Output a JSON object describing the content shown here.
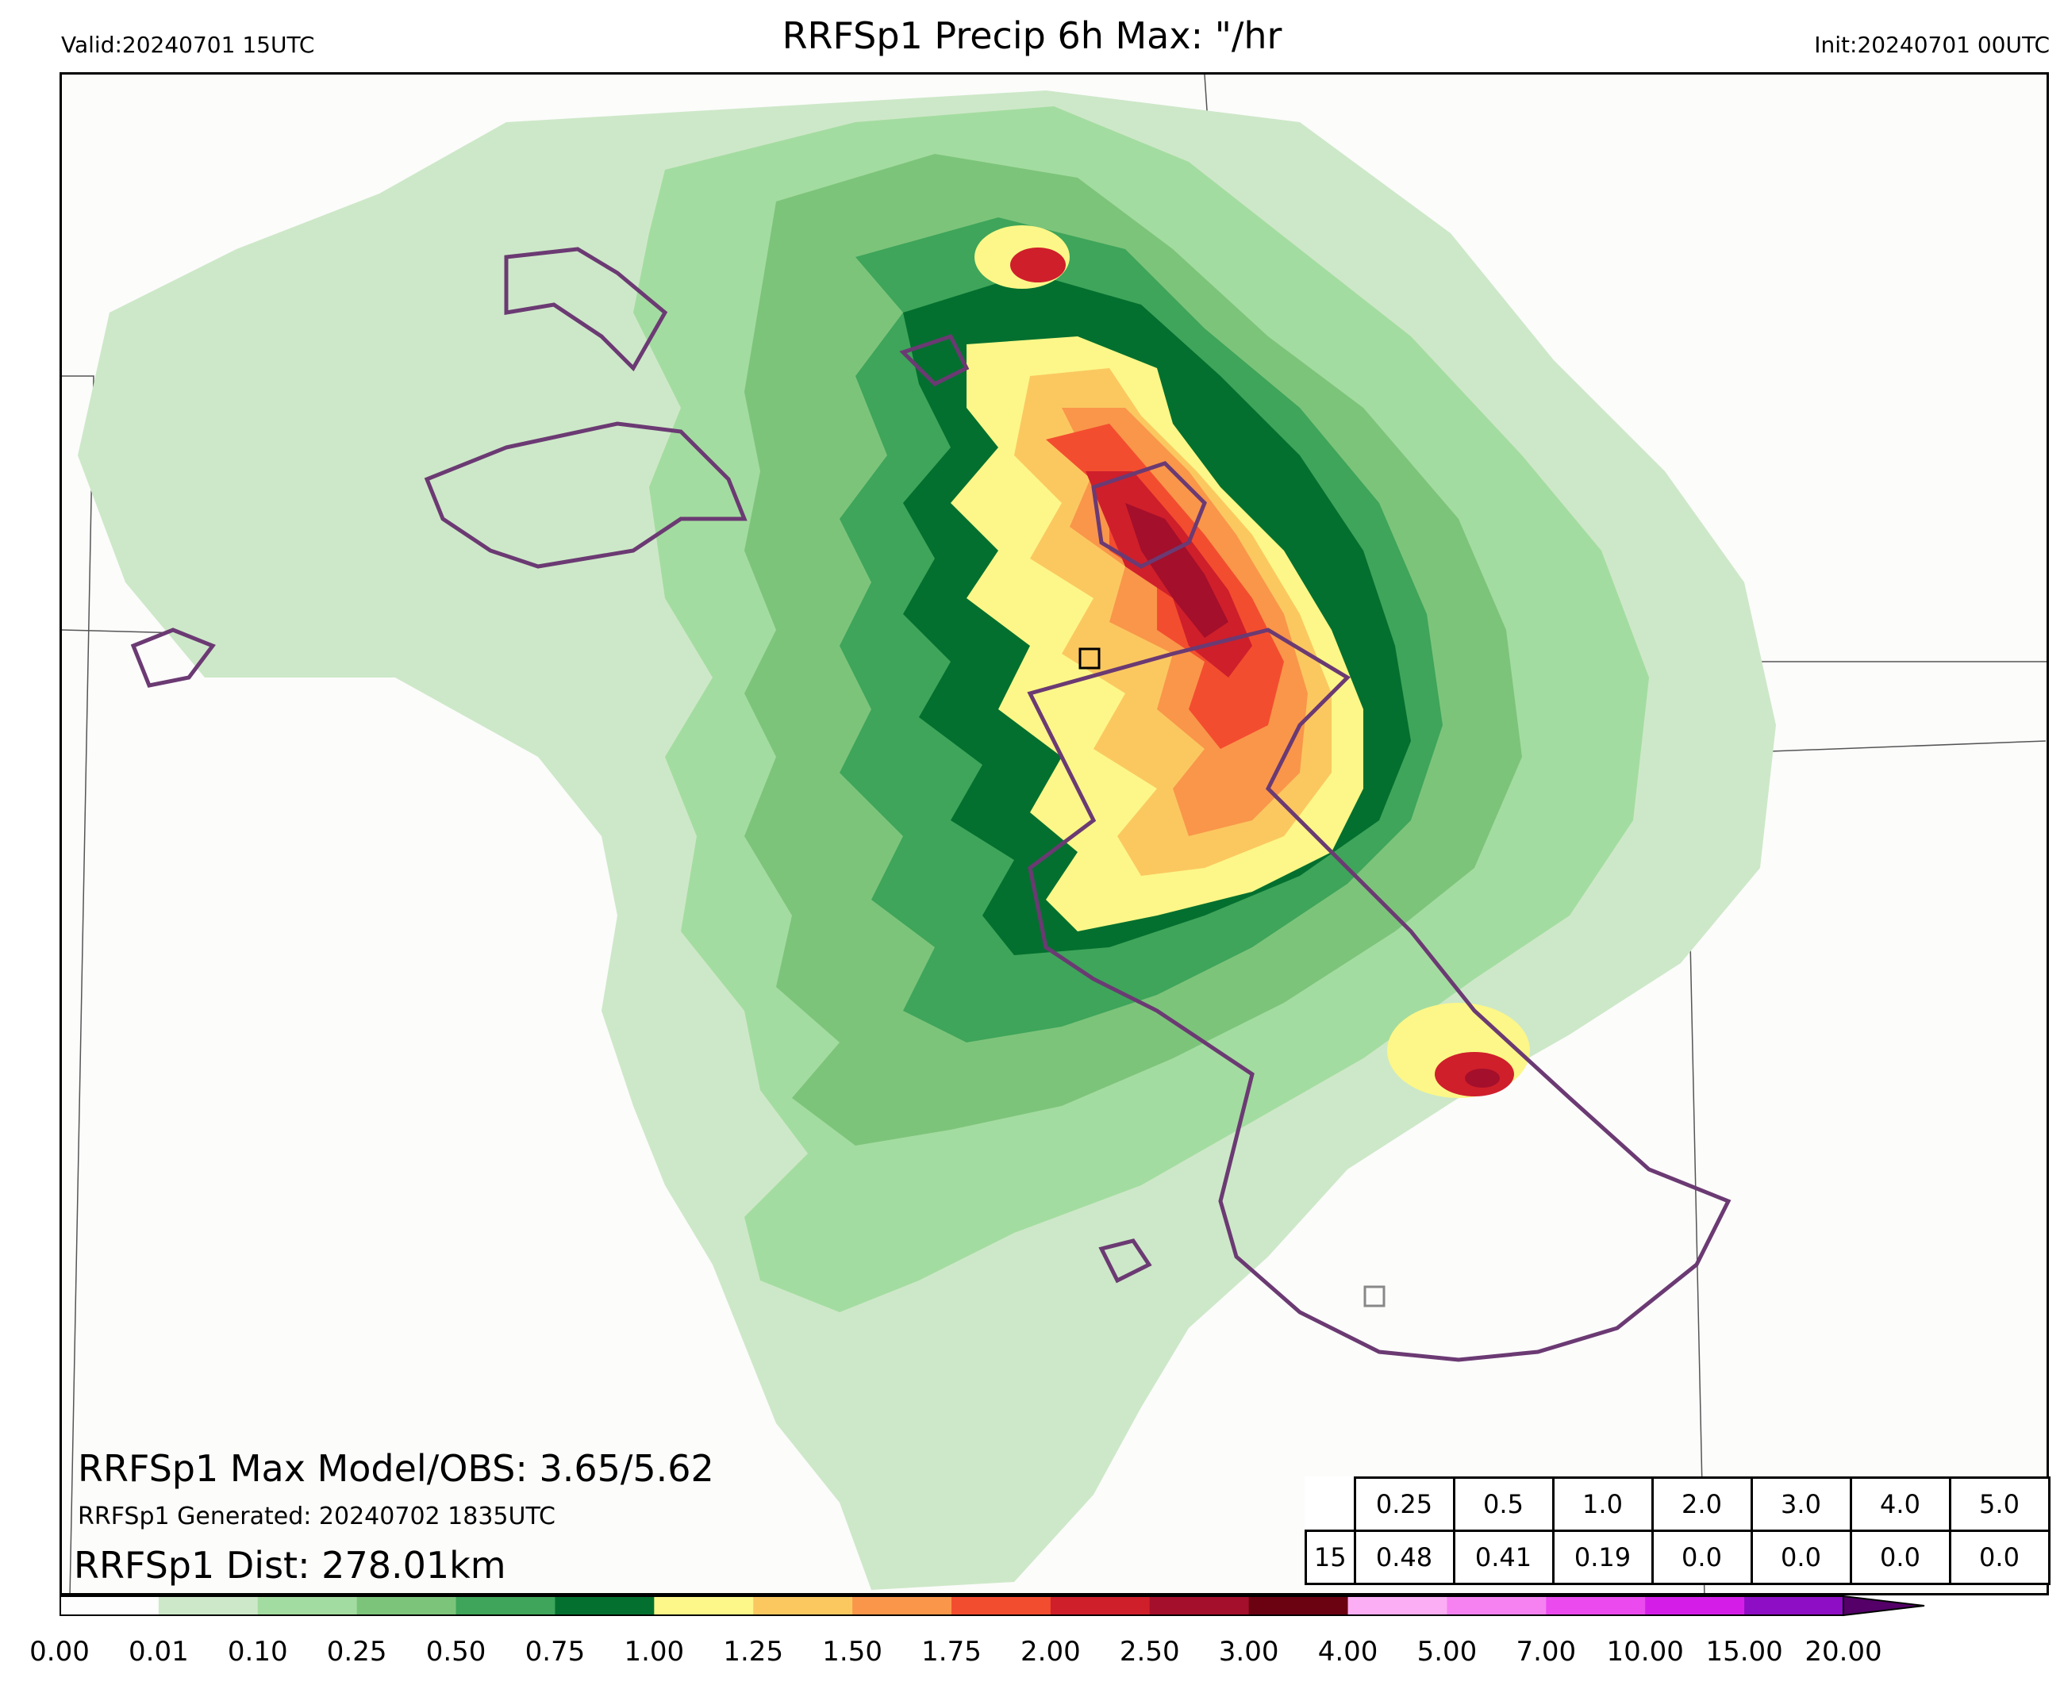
{
  "header": {
    "valid": "Valid:20240701 15UTC",
    "title": "RRFSp1 Precip 6h Max: \"/hr",
    "init": "Init:20240701 00UTC"
  },
  "stats": {
    "max": "RRFSp1 Max Model/OBS: 3.65/5.62",
    "generated": "RRFSp1 Generated: 20240702 1835UTC",
    "dist": "RRFSp1 Dist: 278.01km"
  },
  "table": {
    "thresholds": [
      "0.25",
      "0.5",
      "1.0",
      "2.0",
      "3.0",
      "4.0",
      "5.0"
    ],
    "row_label": "15",
    "values": [
      "0.48",
      "0.41",
      "0.19",
      "0.0",
      "0.0",
      "0.0",
      "0.0"
    ]
  },
  "colorbar": {
    "ticks": [
      "0.00",
      "0.01",
      "0.10",
      "0.25",
      "0.50",
      "0.75",
      "1.00",
      "1.25",
      "1.50",
      "1.75",
      "2.00",
      "2.50",
      "3.00",
      "4.00",
      "5.00",
      "7.00",
      "10.00",
      "15.00",
      "20.00"
    ],
    "colors": [
      "#fdfdfd",
      "#cde8c8",
      "#a3dca0",
      "#7dc47b",
      "#3ea55a",
      "#04702f",
      "#fcf788",
      "#fbc860",
      "#f9964a",
      "#f34d2f",
      "#cf1f2b",
      "#a40f2b",
      "#6b0212",
      "#fbaef3",
      "#f682f2",
      "#ea4aee",
      "#d41ee8",
      "#8d0ec5",
      "#540068"
    ]
  },
  "map": {
    "colors": {
      "light_green": "#cde8c8",
      "green2": "#a3dca0",
      "green3": "#7dc47b",
      "green4": "#3ea55a",
      "dark_green": "#04702f",
      "yellow": "#fcf788",
      "gold": "#fbc860",
      "orange": "#f9964a",
      "red_orange": "#f34d2f",
      "red": "#cf1f2b",
      "dark_red": "#a40f2b",
      "obs_contour": "#6b3a73"
    }
  }
}
